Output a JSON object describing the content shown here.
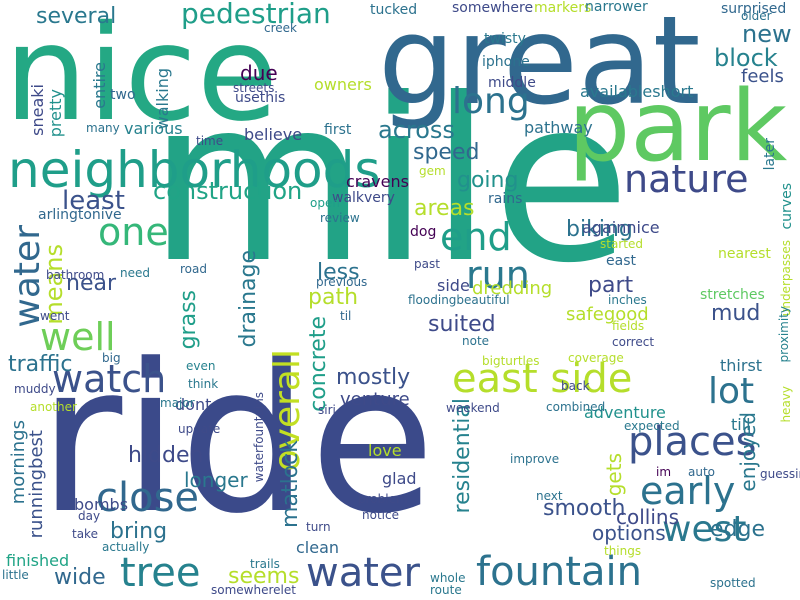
{
  "palette": [
    "#440154",
    "#482878",
    "#3e4a89",
    "#31688e",
    "#26828e",
    "#1f9e89",
    "#35b779",
    "#6ece58",
    "#b5de2b",
    "#fde725"
  ],
  "words": [
    {
      "text": "ride",
      "color": "#3b4a8a"
    },
    {
      "text": "mile",
      "color": "#22a386"
    },
    {
      "text": "nice",
      "color": "#24a884"
    },
    {
      "text": "great",
      "color": "#31688e"
    },
    {
      "text": "park",
      "color": "#5ec962"
    },
    {
      "text": "neighborhoods",
      "color": "#1f9e89"
    },
    {
      "text": "water",
      "color": "#3b528b"
    },
    {
      "text": "fountain",
      "color": "#2c728e"
    },
    {
      "text": "places",
      "color": "#3b528b"
    },
    {
      "text": "watch",
      "color": "#3b528b"
    },
    {
      "text": "close",
      "color": "#31688e"
    },
    {
      "text": "tree",
      "color": "#26828e"
    },
    {
      "text": "east side",
      "color": "#b5de2b"
    },
    {
      "text": "nature",
      "color": "#3e4a89"
    },
    {
      "text": "run",
      "color": "#2a788e"
    },
    {
      "text": "end",
      "color": "#1f9e89"
    },
    {
      "text": "long",
      "color": "#2c728e"
    },
    {
      "text": "early",
      "color": "#2c728e"
    },
    {
      "text": "west",
      "color": "#2a788e"
    },
    {
      "text": "one",
      "color": "#35b779"
    },
    {
      "text": "well",
      "color": "#6ece58"
    },
    {
      "text": "lot",
      "color": "#2c728e"
    },
    {
      "text": "overall",
      "color": "#c2df23"
    },
    {
      "text": "water",
      "color": "#31688e"
    },
    {
      "text": "pedestrian",
      "color": "#1f9e89"
    },
    {
      "text": "several",
      "color": "#2a788e"
    },
    {
      "text": "new",
      "color": "#2c728e"
    },
    {
      "text": "block",
      "color": "#26828e"
    },
    {
      "text": "construction",
      "color": "#20a486"
    },
    {
      "text": "least",
      "color": "#3b528b"
    },
    {
      "text": "across",
      "color": "#2a788e"
    },
    {
      "text": "speed",
      "color": "#31688e"
    },
    {
      "text": "going",
      "color": "#21918c"
    },
    {
      "text": "areas",
      "color": "#b5de2b"
    },
    {
      "text": "biking",
      "color": "#2c728e"
    },
    {
      "text": "means",
      "color": "#b5de2b"
    },
    {
      "text": "near",
      "color": "#3b528b"
    },
    {
      "text": "less",
      "color": "#2c728e"
    },
    {
      "text": "path",
      "color": "#b5de2b"
    },
    {
      "text": "drainage",
      "color": "#2a788e"
    },
    {
      "text": "grass",
      "color": "#1f9e89"
    },
    {
      "text": "concrete",
      "color": "#1f9e89"
    },
    {
      "text": "part",
      "color": "#3e4a89"
    },
    {
      "text": "mud",
      "color": "#3b528b"
    },
    {
      "text": "suited",
      "color": "#3e4a89"
    },
    {
      "text": "traffic",
      "color": "#2c728e"
    },
    {
      "text": "mostly",
      "color": "#3b528b"
    },
    {
      "text": "hidden",
      "color": "#3e4a89"
    },
    {
      "text": "matlock",
      "color": "#2c728e"
    },
    {
      "text": "longer",
      "color": "#2a788e"
    },
    {
      "text": "bring",
      "color": "#2c728e"
    },
    {
      "text": "seems",
      "color": "#b5de2b"
    },
    {
      "text": "wide",
      "color": "#31688e"
    },
    {
      "text": "smooth",
      "color": "#3b528b"
    },
    {
      "text": "edge",
      "color": "#2c728e"
    },
    {
      "text": "enjoyed",
      "color": "#2a788e"
    },
    {
      "text": "gets",
      "color": "#b5de2b"
    },
    {
      "text": "collins",
      "color": "#3e4a89"
    },
    {
      "text": "options",
      "color": "#3b528b"
    },
    {
      "text": "residential",
      "color": "#26828e"
    },
    {
      "text": "venture",
      "color": "#3e4a89"
    },
    {
      "text": "stretches",
      "color": "#5ec962"
    },
    {
      "text": "thirst",
      "color": "#2c728e"
    },
    {
      "text": "till",
      "color": "#2a788e"
    },
    {
      "text": "adventure",
      "color": "#21918c"
    },
    {
      "text": "safegood",
      "color": "#b5de2b"
    },
    {
      "text": "mornings",
      "color": "#2c728e"
    },
    {
      "text": "runningbest",
      "color": "#3b528b"
    },
    {
      "text": "bombs",
      "color": "#3e4a89"
    },
    {
      "text": "clean",
      "color": "#31688e"
    },
    {
      "text": "finished",
      "color": "#20a486"
    },
    {
      "text": "glad",
      "color": "#3e4a89"
    },
    {
      "text": "love",
      "color": "#b5de2b"
    },
    {
      "text": "believe",
      "color": "#3e4a89"
    },
    {
      "text": "dont",
      "color": "#3e4a89"
    },
    {
      "text": "due",
      "color": "#440154"
    },
    {
      "text": "various",
      "color": "#26828e"
    },
    {
      "text": "walking",
      "color": "#2a788e"
    },
    {
      "text": "usethis",
      "color": "#3e4a89"
    },
    {
      "text": "owners",
      "color": "#b5de2b"
    },
    {
      "text": "entire",
      "color": "#2a788e"
    },
    {
      "text": "pretty",
      "color": "#21918c"
    },
    {
      "text": "sneaki",
      "color": "#3e4a89"
    },
    {
      "text": "pathway",
      "color": "#2c728e"
    },
    {
      "text": "availableshort",
      "color": "#2a788e"
    },
    {
      "text": "cravens",
      "color": "#440154"
    },
    {
      "text": "againnice",
      "color": "#3e4a89"
    },
    {
      "text": "dredding",
      "color": "#b5de2b"
    },
    {
      "text": "feels",
      "color": "#3b528b"
    },
    {
      "text": "twisty",
      "color": "#2a788e"
    },
    {
      "text": "iphone",
      "color": "#2c728e"
    },
    {
      "text": "middle",
      "color": "#3e4a89"
    },
    {
      "text": "creek",
      "color": "#31688e"
    },
    {
      "text": "tucked",
      "color": "#2c728e"
    },
    {
      "text": "somewhere",
      "color": "#3e4a89"
    },
    {
      "text": "markers",
      "color": "#b5de2b"
    },
    {
      "text": "narrower",
      "color": "#2a788e"
    },
    {
      "text": "surprised",
      "color": "#31688e"
    },
    {
      "text": "older",
      "color": "#2c728e"
    },
    {
      "text": "streets",
      "color": "#3e4a89"
    },
    {
      "text": "two",
      "color": "#31688e"
    },
    {
      "text": "many",
      "color": "#2c728e"
    },
    {
      "text": "time",
      "color": "#3e4a89"
    },
    {
      "text": "first",
      "color": "#2c728e"
    },
    {
      "text": "gem",
      "color": "#b5de2b"
    },
    {
      "text": "later",
      "color": "#2a788e"
    },
    {
      "text": "walkvery",
      "color": "#3e4a89"
    },
    {
      "text": "rains",
      "color": "#31688e"
    },
    {
      "text": "started",
      "color": "#b5de2b"
    },
    {
      "text": "curves",
      "color": "#21918c"
    },
    {
      "text": "arlingtonive",
      "color": "#31688e"
    },
    {
      "text": "review",
      "color": "#2c728e"
    },
    {
      "text": "open",
      "color": "#1f9e89"
    },
    {
      "text": "dog",
      "color": "#440154"
    },
    {
      "text": "east",
      "color": "#31688e"
    },
    {
      "text": "nearest",
      "color": "#b5de2b"
    },
    {
      "text": "bathroom",
      "color": "#3e4a89"
    },
    {
      "text": "need",
      "color": "#2a788e"
    },
    {
      "text": "road",
      "color": "#31688e"
    },
    {
      "text": "past",
      "color": "#3e4a89"
    },
    {
      "text": "side",
      "color": "#3e4a89"
    },
    {
      "text": "previous",
      "color": "#31688e"
    },
    {
      "text": "floodingbeautiful",
      "color": "#2c728e"
    },
    {
      "text": "inches",
      "color": "#2a788e"
    },
    {
      "text": "underpasses",
      "color": "#b5de2b"
    },
    {
      "text": "went",
      "color": "#3e4a89"
    },
    {
      "text": "til",
      "color": "#31688e"
    },
    {
      "text": "note",
      "color": "#2c728e"
    },
    {
      "text": "fields",
      "color": "#b5de2b"
    },
    {
      "text": "proximity",
      "color": "#26828e"
    },
    {
      "text": "correct",
      "color": "#3e4a89"
    },
    {
      "text": "bigturtles",
      "color": "#b5de2b"
    },
    {
      "text": "coverage",
      "color": "#b5de2b"
    },
    {
      "text": "big",
      "color": "#31688e"
    },
    {
      "text": "even",
      "color": "#26828e"
    },
    {
      "text": "think",
      "color": "#2a788e"
    },
    {
      "text": "muddy",
      "color": "#3e4a89"
    },
    {
      "text": "major",
      "color": "#2a788e"
    },
    {
      "text": "another",
      "color": "#b5de2b"
    },
    {
      "text": "waterfountains",
      "color": "#3e4a89"
    },
    {
      "text": "siri",
      "color": "#3e4a89"
    },
    {
      "text": "weekend",
      "color": "#3e4a89"
    },
    {
      "text": "combined",
      "color": "#2c728e"
    },
    {
      "text": "back",
      "color": "#3e4a89"
    },
    {
      "text": "expected",
      "color": "#2a788e"
    },
    {
      "text": "heavy",
      "color": "#b5de2b"
    },
    {
      "text": "update",
      "color": "#3e4a89"
    },
    {
      "text": "improve",
      "color": "#2c728e"
    },
    {
      "text": "auto",
      "color": "#31688e"
    },
    {
      "text": "guessing",
      "color": "#3e4a89"
    },
    {
      "text": "im",
      "color": "#440154"
    },
    {
      "text": "problem",
      "color": "#3e4a89"
    },
    {
      "text": "next",
      "color": "#2c728e"
    },
    {
      "text": "notice",
      "color": "#3e4a89"
    },
    {
      "text": "turn",
      "color": "#3e4a89"
    },
    {
      "text": "day",
      "color": "#3e4a89"
    },
    {
      "text": "take",
      "color": "#3e4a89"
    },
    {
      "text": "actually",
      "color": "#2a788e"
    },
    {
      "text": "trails",
      "color": "#2a788e"
    },
    {
      "text": "things",
      "color": "#b5de2b"
    },
    {
      "text": "little",
      "color": "#2c728e"
    },
    {
      "text": "somewherelet",
      "color": "#3e4a89"
    },
    {
      "text": "whole",
      "color": "#2a788e"
    },
    {
      "text": "route",
      "color": "#2a788e"
    },
    {
      "text": "spotted",
      "color": "#2c728e"
    }
  ]
}
